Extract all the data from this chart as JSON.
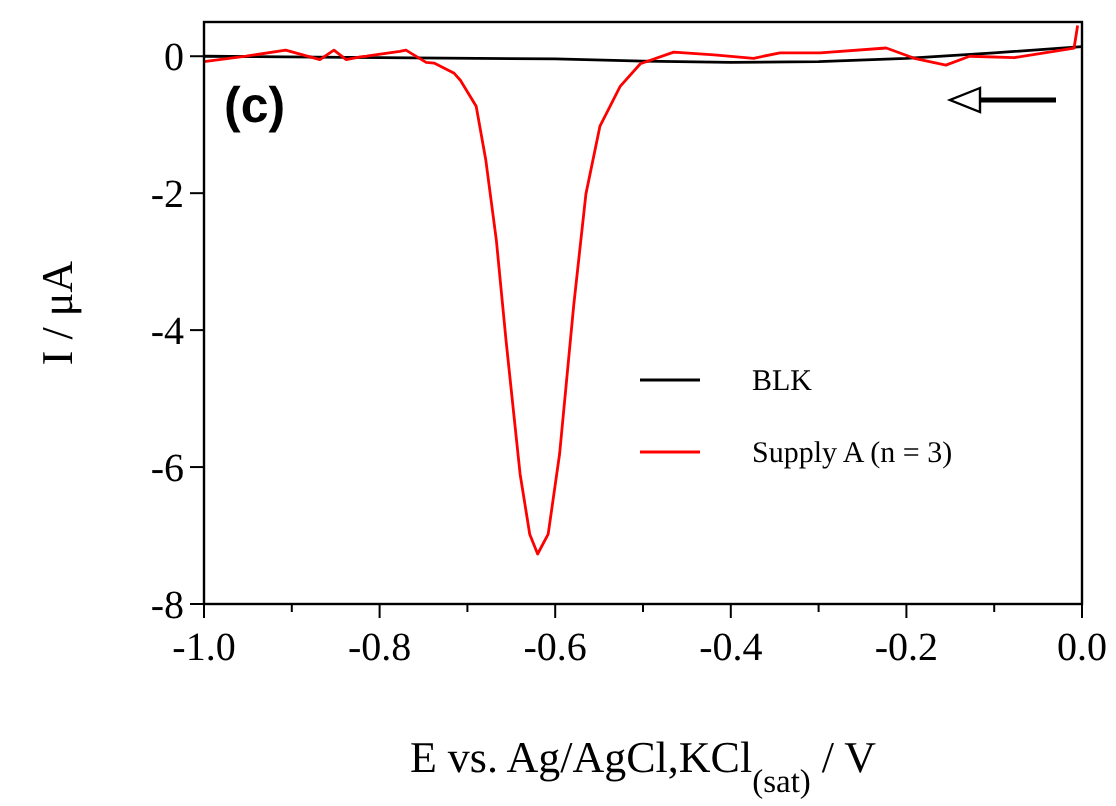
{
  "chart_data": {
    "type": "line",
    "xlabel": "E vs. Ag/AgCl,KCl$_{(sat)}$ / V",
    "ylabel": "I / μA",
    "annotations": [
      "(c)"
    ],
    "legend": "right",
    "grid": false,
    "marker": "none",
    "line_style": "solid",
    "xlim": [
      -1.0,
      0.0
    ],
    "ylim": [
      -8,
      0.5
    ],
    "xticks": [
      {
        "value": -1,
        "label": "-1.0"
      },
      {
        "value": -0.9,
        "label": null
      },
      -0.8,
      {
        "value": -0.7,
        "label": null
      },
      -0.6,
      {
        "value": -0.5,
        "label": null
      },
      -0.4,
      {
        "value": -0.3,
        "label": null
      },
      -0.2,
      {
        "value": -0.1,
        "label": null
      },
      {
        "value": 0,
        "label": "0.0"
      }
    ],
    "yticks": [
      -8,
      -6,
      -4,
      -2,
      0
    ],
    "series": [
      {
        "name": "BLK",
        "color": "#000000",
        "x": [
          -1.0,
          -0.8,
          -0.6,
          -0.5,
          -0.4,
          -0.3,
          -0.2,
          -0.1,
          0.0
        ],
        "values": [
          0,
          -0.02,
          -0.04,
          -0.07,
          -0.09,
          -0.08,
          -0.03,
          0.05,
          0.14
        ]
      },
      {
        "name": "Supply A (n = 3)",
        "color": "#ff0000",
        "x": [
          -1.0,
          -0.952,
          -0.907,
          -0.868,
          -0.852,
          -0.838,
          -0.822,
          -0.815,
          -0.777,
          -0.77,
          -0.747,
          -0.738,
          -0.715,
          -0.708,
          -0.69,
          -0.679,
          -0.667,
          -0.656,
          -0.64,
          -0.629,
          -0.62,
          -0.608,
          -0.595,
          -0.579,
          -0.565,
          -0.549,
          -0.526,
          -0.503,
          -0.465,
          -0.419,
          -0.374,
          -0.344,
          -0.298,
          -0.223,
          -0.191,
          -0.155,
          -0.128,
          -0.077,
          -0.032,
          -0.009,
          -0.005
        ],
        "values": [
          -0.08,
          0,
          0.09,
          -0.05,
          0.09,
          -0.05,
          -0.01,
          0,
          0.07,
          0.09,
          -0.09,
          -0.1,
          -0.25,
          -0.35,
          -0.73,
          -1.52,
          -2.69,
          -4.15,
          -6.1,
          -6.98,
          -7.27,
          -6.98,
          -5.81,
          -3.65,
          -2.01,
          -1.02,
          -0.44,
          -0.11,
          0.06,
          0.02,
          -0.03,
          0.05,
          0.05,
          0.12,
          -0.03,
          -0.13,
          0,
          -0.02,
          0.07,
          0.12,
          0.45
        ]
      }
    ]
  }
}
